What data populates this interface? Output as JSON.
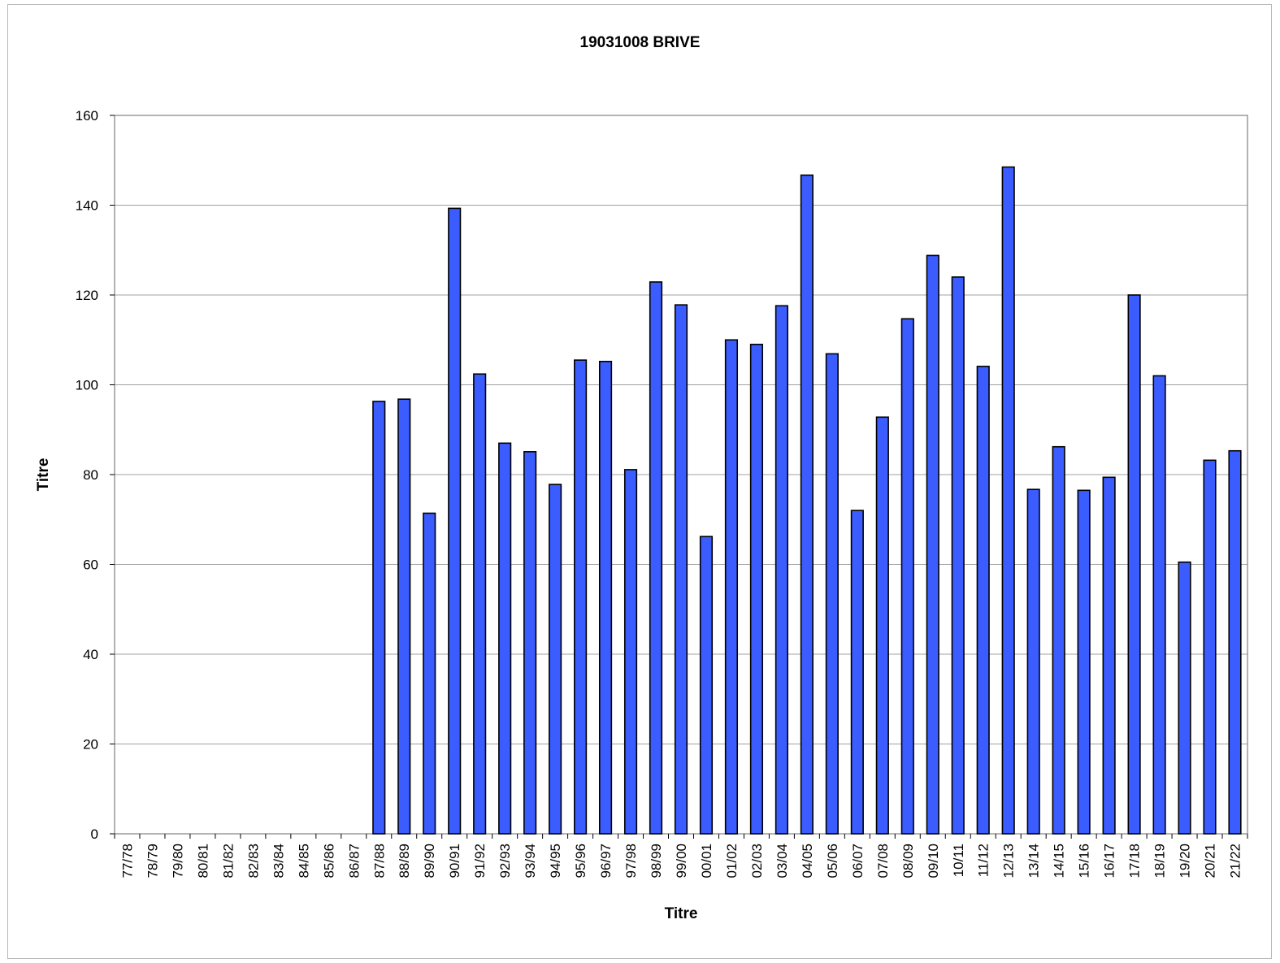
{
  "chart_data": {
    "type": "bar",
    "title": "19031008 BRIVE",
    "xlabel": "Titre",
    "ylabel": "Titre",
    "ylim": [
      0,
      160
    ],
    "yticks": [
      "0",
      "20",
      "40",
      "60",
      "80",
      "100",
      "120",
      "140",
      "160"
    ],
    "grid": true,
    "categories": [
      "77/78",
      "78/79",
      "79/80",
      "80/81",
      "81/82",
      "82/83",
      "83/84",
      "84/85",
      "85/86",
      "86/87",
      "87/88",
      "88/89",
      "89/90",
      "90/91",
      "91/92",
      "92/93",
      "93/94",
      "94/95",
      "95/96",
      "96/97",
      "97/98",
      "98/99",
      "99/00",
      "00/01",
      "01/02",
      "02/03",
      "03/04",
      "04/05",
      "05/06",
      "06/07",
      "07/08",
      "08/09",
      "09/10",
      "10/11",
      "11/12",
      "12/13",
      "13/14",
      "14/15",
      "15/16",
      "16/17",
      "17/18",
      "18/19",
      "19/20",
      "20/21",
      "21/22"
    ],
    "values": [
      null,
      null,
      null,
      null,
      null,
      null,
      null,
      null,
      null,
      null,
      96.3,
      96.8,
      71.4,
      139.3,
      102.4,
      87.0,
      85.1,
      77.8,
      105.5,
      105.2,
      81.1,
      122.9,
      117.8,
      66.2,
      110.0,
      109.0,
      117.6,
      146.7,
      106.9,
      72.0,
      92.8,
      114.7,
      128.8,
      124.0,
      104.1,
      148.5,
      76.7,
      86.2,
      76.5,
      79.4,
      120.0,
      102.0,
      60.5,
      83.2,
      85.3
    ],
    "colors": {
      "bar_fill": "#3b5cff",
      "bar_stroke": "#000000",
      "gridline": "#a0a0a0",
      "frame": "#b8b8b8"
    }
  }
}
